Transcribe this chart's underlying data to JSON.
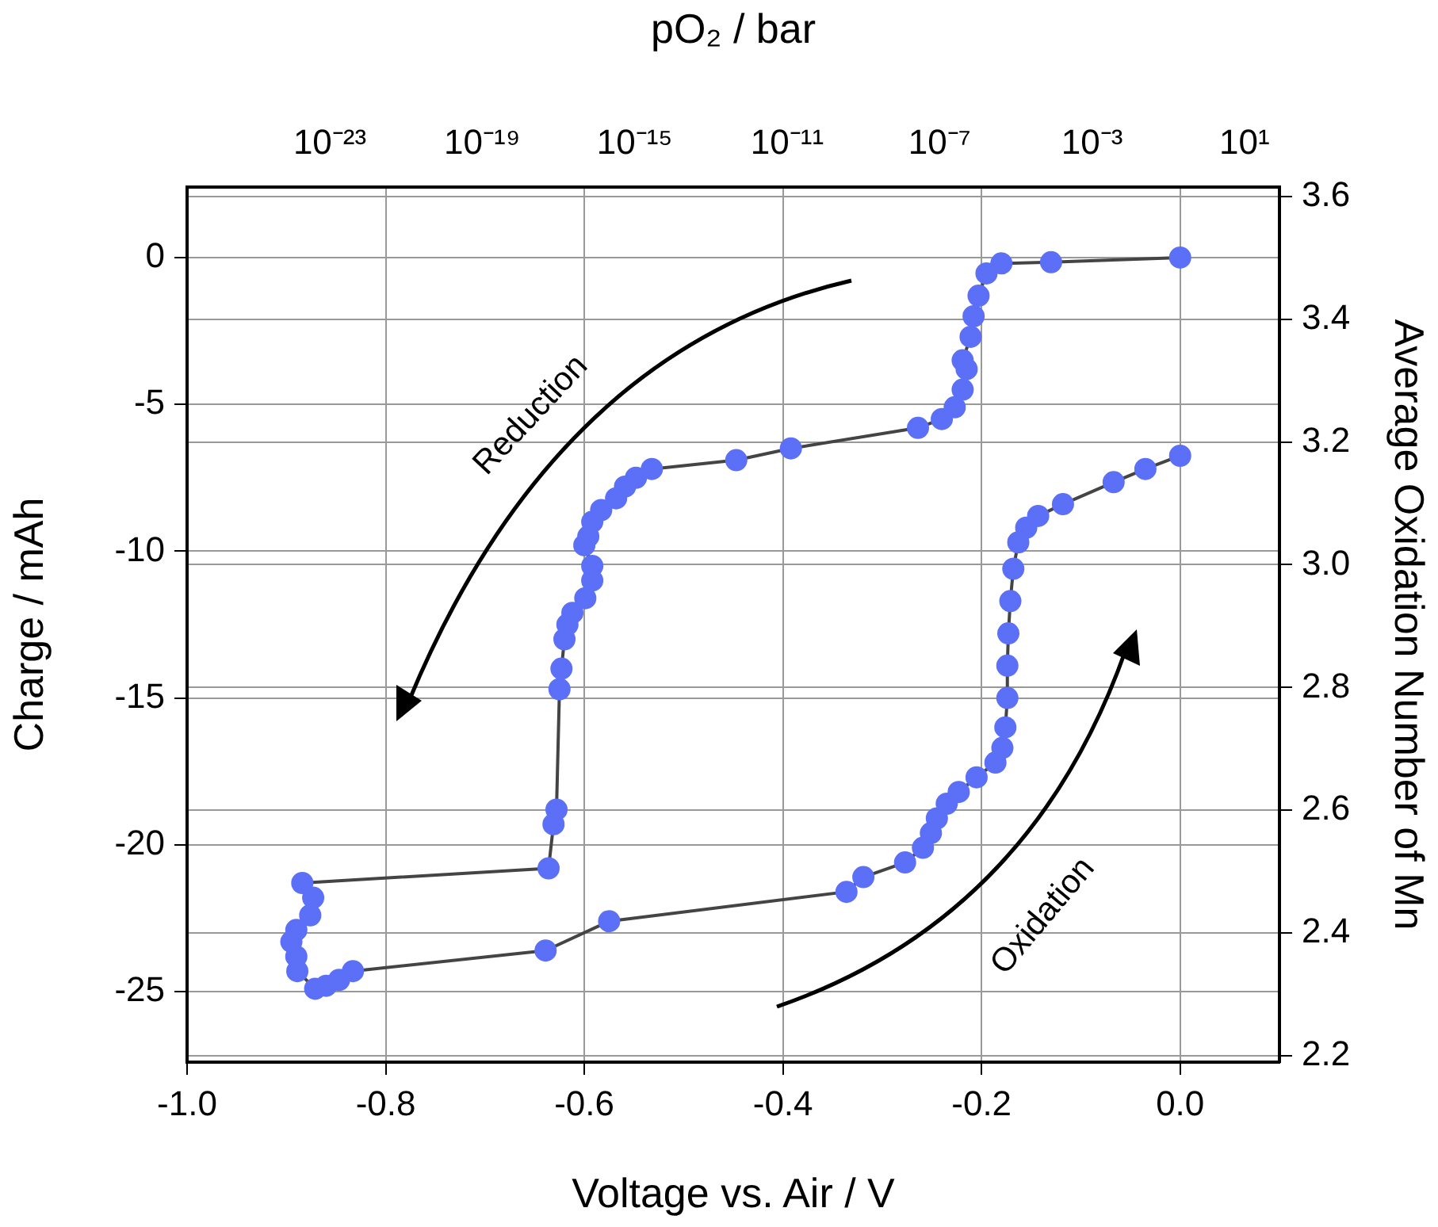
{
  "chart_data": {
    "type": "line",
    "xlabel": "Voltage vs. Air / V",
    "ylabel": "Charge / mAh",
    "y2label": "Average Oxidation Number of Mn",
    "x2label": "pO₂ / bar",
    "annotations": [
      "Reduction",
      "Oxidation"
    ],
    "xlim": [
      -1.0,
      0.1
    ],
    "xticks": [
      {
        "value": -1,
        "label": "-1.0"
      },
      -0.8,
      -0.6,
      -0.4,
      -0.2,
      {
        "value": 0,
        "label": "0.0"
      }
    ],
    "ylim": [
      -27.4,
      2.4
    ],
    "yticks": [
      -25,
      -20,
      -15,
      -10,
      -5,
      0
    ],
    "y2lim": [
      2.19,
      3.615
    ],
    "y2ticks": [
      2.2,
      2.4,
      2.6,
      2.8,
      {
        "value": 3,
        "label": "3.0"
      },
      3.2,
      3.4,
      3.6
    ],
    "x2lim": [
      1.8e-27,
      83
    ],
    "x2ticks": [
      {
        "value": 1e-23,
        "label": "10⁻²³"
      },
      {
        "value": 1e-19,
        "label": "10⁻¹⁹"
      },
      {
        "value": 1e-15,
        "label": "10⁻¹⁵"
      },
      {
        "value": 1e-11,
        "label": "10⁻¹¹"
      },
      {
        "value": 1e-07,
        "label": "10⁻⁷"
      },
      {
        "value": 0.001,
        "label": "10⁻³"
      },
      {
        "value": 10,
        "label": "10¹"
      }
    ],
    "log": "x2",
    "grid": true,
    "legend": false,
    "marker": "circle",
    "line_style": "solid",
    "series": [
      {
        "color": "#5b6ff7",
        "x": [
          0,
          -0.13,
          -0.18,
          -0.195,
          -0.203,
          -0.208,
          -0.211,
          -0.219,
          -0.215,
          -0.219,
          -0.227,
          -0.24,
          -0.264,
          -0.392,
          -0.447,
          -0.532,
          -0.548,
          -0.559,
          -0.568,
          -0.583,
          -0.592,
          -0.596,
          -0.6,
          -0.592,
          -0.592,
          -0.599,
          -0.612,
          -0.617,
          -0.62,
          -0.623,
          -0.625,
          -0.628,
          -0.631,
          -0.636,
          -0.884,
          -0.873,
          -0.876,
          -0.89,
          -0.895,
          -0.89,
          -0.889,
          -0.871,
          -0.86,
          -0.847,
          -0.833,
          -0.639,
          -0.575,
          -0.336,
          -0.319,
          -0.277,
          -0.259,
          -0.251,
          -0.245,
          -0.235,
          -0.223,
          -0.205,
          -0.186,
          -0.179,
          -0.176,
          -0.174,
          -0.174,
          -0.173,
          -0.171,
          -0.168,
          -0.163,
          -0.155,
          -0.143,
          -0.118,
          -0.067,
          -0.035,
          0
        ],
        "values": [
          0,
          -0.16,
          -0.2,
          -0.54,
          -1.3,
          -2.0,
          -2.7,
          -3.5,
          -3.8,
          -4.5,
          -5.1,
          -5.5,
          -5.8,
          -6.5,
          -6.9,
          -7.2,
          -7.5,
          -7.8,
          -8.2,
          -8.6,
          -9.0,
          -9.5,
          -9.8,
          -10.5,
          -11.0,
          -11.6,
          -12.1,
          -12.5,
          -13.0,
          -14.0,
          -14.7,
          -18.8,
          -19.3,
          -20.8,
          -21.3,
          -21.8,
          -22.4,
          -22.9,
          -23.3,
          -23.8,
          -24.3,
          -24.9,
          -24.8,
          -24.6,
          -24.3,
          -23.6,
          -22.6,
          -21.6,
          -21.1,
          -20.6,
          -20.1,
          -19.6,
          -19.1,
          -18.6,
          -18.2,
          -17.7,
          -17.2,
          -16.7,
          -16.0,
          -15.0,
          -13.9,
          -12.8,
          -11.7,
          -10.6,
          -9.7,
          -9.2,
          -8.8,
          -8.4,
          -7.65,
          -7.2,
          -6.75
        ]
      }
    ]
  }
}
